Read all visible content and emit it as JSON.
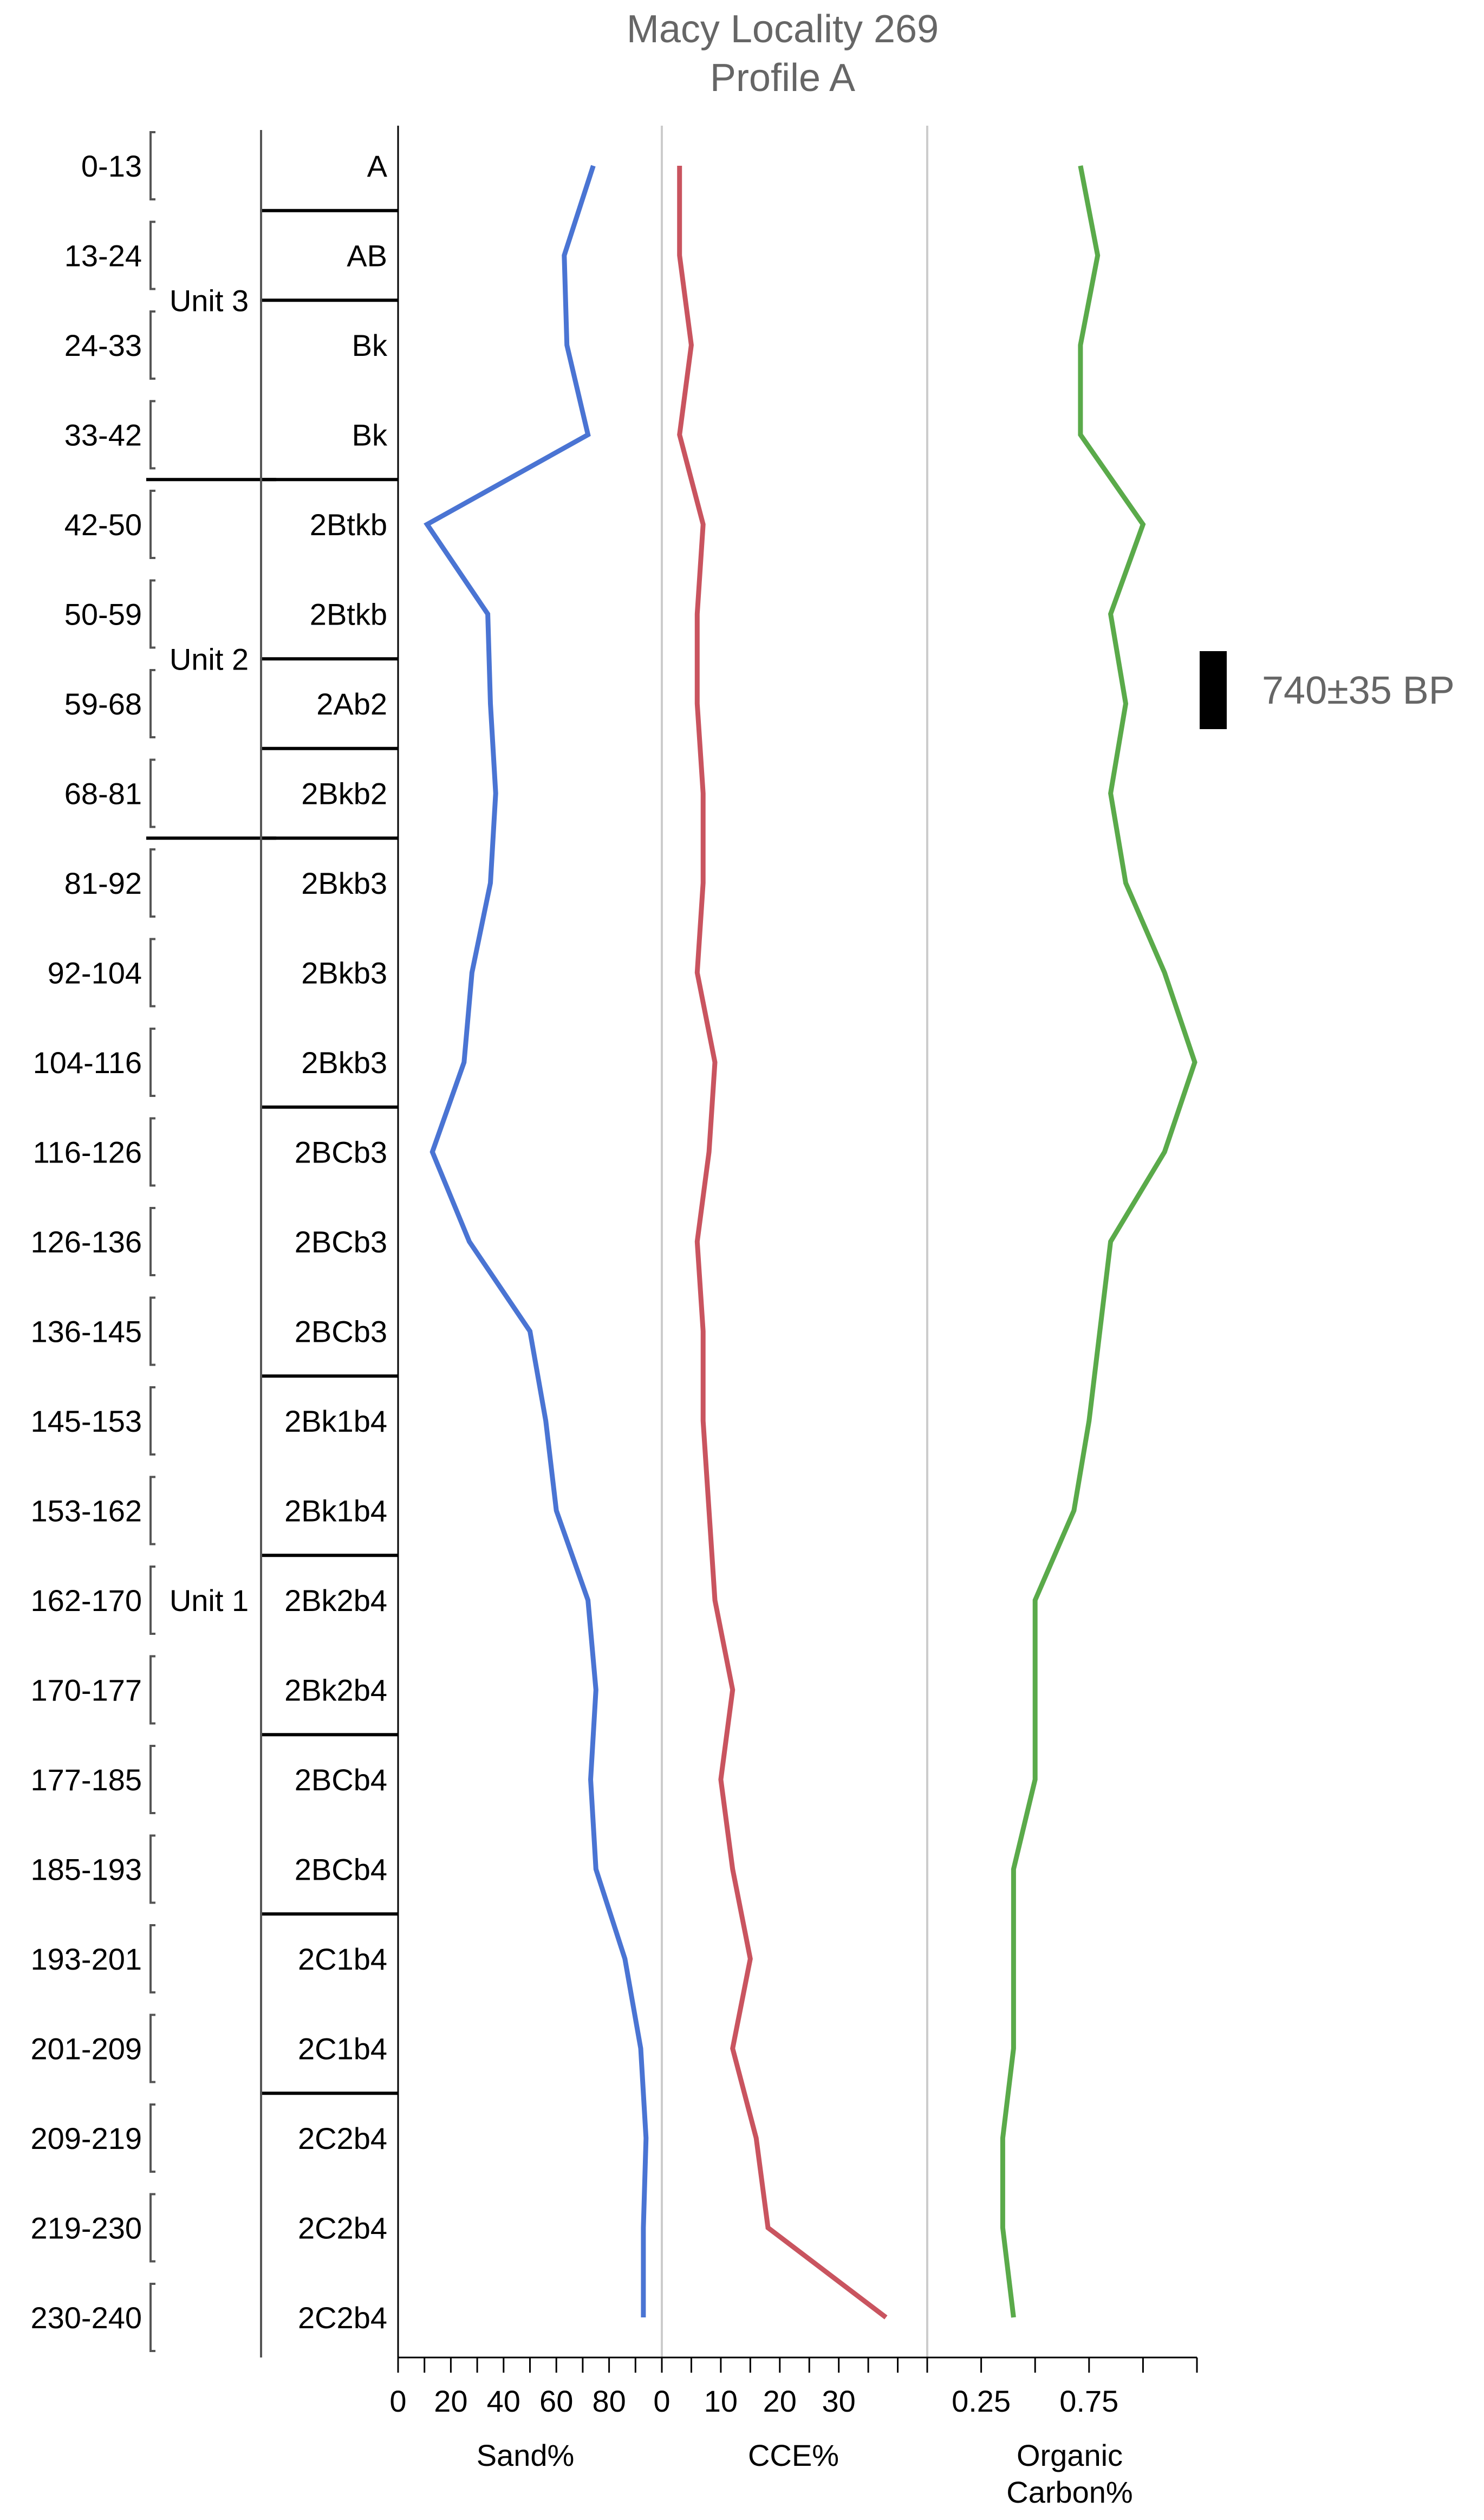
{
  "chart_data": {
    "type": "line",
    "title": "Macy Locality 269",
    "subtitle": "Profile A",
    "depths": [
      "0-13",
      "13-24",
      "24-33",
      "33-42",
      "42-50",
      "50-59",
      "59-68",
      "68-81",
      "81-92",
      "92-104",
      "104-116",
      "116-126",
      "126-136",
      "136-145",
      "145-153",
      "153-162",
      "162-170",
      "170-177",
      "177-185",
      "185-193",
      "193-201",
      "201-209",
      "209-219",
      "219-230",
      "230-240"
    ],
    "horizons": [
      "A",
      "AB",
      "Bk",
      "Bk",
      "2Btkb",
      "2Btkb",
      "2Ab2",
      "2Bkb2",
      "2Bkb3",
      "2Bkb3",
      "2Bkb3",
      "2BCb3",
      "2BCb3",
      "2BCb3",
      "2Bk1b4",
      "2Bk1b4",
      "2Bk2b4",
      "2Bk2b4",
      "2BCb4",
      "2BCb4",
      "2C1b4",
      "2C1b4",
      "2C2b4",
      "2C2b4",
      "2C2b4"
    ],
    "units": [
      {
        "name": "Unit 3",
        "rows": [
          0,
          3
        ]
      },
      {
        "name": "Unit 2",
        "rows": [
          4,
          7
        ]
      },
      {
        "name": "Unit 1",
        "rows": [
          8,
          24
        ]
      }
    ],
    "series": [
      {
        "name": "Sand%",
        "color": "#4a74d3",
        "xlim": [
          0,
          100
        ],
        "ticks": [
          0,
          20,
          40,
          60,
          80
        ],
        "minor_ticks": [
          10,
          30,
          50,
          70,
          90,
          100
        ],
        "xlabel": "Sand%",
        "values": [
          74,
          63,
          64,
          72,
          11,
          34,
          35,
          37,
          35,
          28,
          25,
          13,
          27,
          50,
          56,
          60,
          72,
          75,
          73,
          75,
          86,
          92,
          94,
          93,
          93
        ]
      },
      {
        "name": "CCE%",
        "color": "#c9545f",
        "xlim": [
          0,
          45
        ],
        "ticks": [
          0,
          10,
          20,
          30
        ],
        "minor_ticks": [
          5,
          15,
          25,
          35,
          40,
          45
        ],
        "xlabel": "CCE%",
        "values": [
          3,
          3,
          5,
          3,
          7,
          6,
          6,
          7,
          7,
          6,
          9,
          8,
          6,
          7,
          7,
          8,
          9,
          12,
          10,
          12,
          15,
          12,
          16,
          18,
          38
        ]
      },
      {
        "name": "Organic Carbon%",
        "color": "#5aaa4a",
        "xlim": [
          0,
          1.25
        ],
        "ticks": [
          0.25,
          0.75
        ],
        "minor_ticks": [
          0,
          0.5,
          1.0,
          1.25
        ],
        "xlabel": "Organic Carbon%",
        "xlabel_lines": [
          "Organic",
          "Carbon%"
        ],
        "values": [
          0.71,
          0.79,
          0.71,
          0.71,
          1.0,
          0.85,
          0.92,
          0.85,
          0.92,
          1.1,
          1.24,
          1.1,
          0.85,
          0.8,
          0.75,
          0.68,
          0.5,
          0.5,
          0.5,
          0.4,
          0.4,
          0.4,
          0.35,
          0.35,
          0.4
        ]
      }
    ],
    "annotations": [
      {
        "text": "740±35 BP",
        "row": 6
      }
    ]
  }
}
